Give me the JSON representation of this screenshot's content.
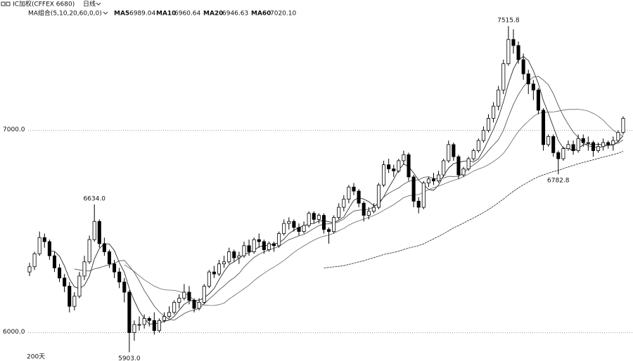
{
  "chart_data": {
    "type": "candlestick",
    "title": "IC加权(CFFEX 6680)",
    "period_label": "日线",
    "ma_group_label": "MA组合(5,10,20,60,0,0)",
    "moving_averages": [
      {
        "name": "MA5",
        "period": 5,
        "value": 6989.04,
        "color": "#111111"
      },
      {
        "name": "MA10",
        "period": 10,
        "value": 6960.64,
        "color": "#444444"
      },
      {
        "name": "MA20",
        "period": 20,
        "value": 6946.63,
        "color": "#666666"
      },
      {
        "name": "MA60",
        "period": 60,
        "value": 7020.1,
        "value_label": "7020.10",
        "color": "#222222"
      }
    ],
    "footer": "200天",
    "ylim": [
      5870,
      7600
    ],
    "yticks": [
      {
        "value": 7000,
        "label": "7000.0"
      },
      {
        "value": 6000,
        "label": "6000.0"
      }
    ],
    "grid": true,
    "up_color": "#ffffff",
    "down_color": "#000000",
    "annotations": [
      {
        "value": 7515.8,
        "kind": "high"
      },
      {
        "value": 6634,
        "label": "6634.0",
        "kind": "high"
      },
      {
        "value": 5903,
        "label": "5903.0",
        "kind": "low"
      },
      {
        "value": 6782.8,
        "kind": "low"
      }
    ],
    "candles": [
      [
        6300,
        6345,
        6280,
        6326
      ],
      [
        6326,
        6400,
        6310,
        6390
      ],
      [
        6390,
        6500,
        6380,
        6470
      ],
      [
        6470,
        6490,
        6420,
        6450
      ],
      [
        6450,
        6460,
        6360,
        6380
      ],
      [
        6380,
        6400,
        6300,
        6320
      ],
      [
        6320,
        6340,
        6250,
        6270
      ],
      [
        6270,
        6290,
        6200,
        6230
      ],
      [
        6230,
        6250,
        6100,
        6130
      ],
      [
        6130,
        6200,
        6110,
        6180
      ],
      [
        6180,
        6300,
        6170,
        6280
      ],
      [
        6280,
        6380,
        6260,
        6350
      ],
      [
        6350,
        6480,
        6340,
        6460
      ],
      [
        6460,
        6634,
        6450,
        6550
      ],
      [
        6550,
        6560,
        6420,
        6440
      ],
      [
        6440,
        6470,
        6380,
        6400
      ],
      [
        6400,
        6410,
        6320,
        6340
      ],
      [
        6340,
        6360,
        6270,
        6300
      ],
      [
        6300,
        6320,
        6220,
        6250
      ],
      [
        6250,
        6270,
        6150,
        6200
      ],
      [
        6200,
        6210,
        5903,
        6000
      ],
      [
        6000,
        6060,
        5960,
        6040
      ],
      [
        6040,
        6080,
        6010,
        6040
      ],
      [
        6040,
        6090,
        6020,
        6070
      ],
      [
        6070,
        6080,
        6030,
        6060
      ],
      [
        6060,
        6100,
        5990,
        6010
      ],
      [
        6010,
        6070,
        6000,
        6060
      ],
      [
        6060,
        6100,
        6050,
        6080
      ],
      [
        6080,
        6130,
        6070,
        6100
      ],
      [
        6100,
        6160,
        6090,
        6150
      ],
      [
        6150,
        6190,
        6120,
        6170
      ],
      [
        6170,
        6240,
        6160,
        6200
      ],
      [
        6200,
        6230,
        6140,
        6160
      ],
      [
        6160,
        6170,
        6100,
        6120
      ],
      [
        6120,
        6170,
        6110,
        6150
      ],
      [
        6150,
        6240,
        6140,
        6230
      ],
      [
        6230,
        6310,
        6220,
        6300
      ],
      [
        6300,
        6330,
        6270,
        6290
      ],
      [
        6290,
        6360,
        6280,
        6340
      ],
      [
        6340,
        6380,
        6320,
        6350
      ],
      [
        6350,
        6420,
        6340,
        6400
      ],
      [
        6400,
        6410,
        6350,
        6370
      ],
      [
        6370,
        6400,
        6340,
        6380
      ],
      [
        6380,
        6450,
        6370,
        6430
      ],
      [
        6430,
        6460,
        6380,
        6400
      ],
      [
        6400,
        6470,
        6390,
        6460
      ],
      [
        6460,
        6490,
        6420,
        6450
      ],
      [
        6450,
        6460,
        6390,
        6410
      ],
      [
        6410,
        6450,
        6400,
        6440
      ],
      [
        6440,
        6450,
        6400,
        6430
      ],
      [
        6430,
        6500,
        6420,
        6490
      ],
      [
        6490,
        6560,
        6480,
        6540
      ],
      [
        6540,
        6570,
        6510,
        6550
      ],
      [
        6550,
        6560,
        6500,
        6520
      ],
      [
        6520,
        6540,
        6480,
        6500
      ],
      [
        6500,
        6550,
        6490,
        6530
      ],
      [
        6530,
        6600,
        6520,
        6590
      ],
      [
        6590,
        6600,
        6540,
        6560
      ],
      [
        6560,
        6590,
        6540,
        6580
      ],
      [
        6580,
        6590,
        6490,
        6510
      ],
      [
        6510,
        6520,
        6440,
        6500
      ],
      [
        6500,
        6580,
        6490,
        6570
      ],
      [
        6570,
        6640,
        6560,
        6620
      ],
      [
        6620,
        6680,
        6600,
        6660
      ],
      [
        6660,
        6730,
        6640,
        6720
      ],
      [
        6720,
        6740,
        6680,
        6700
      ],
      [
        6700,
        6710,
        6620,
        6640
      ],
      [
        6640,
        6650,
        6550,
        6580
      ],
      [
        6580,
        6620,
        6560,
        6600
      ],
      [
        6600,
        6640,
        6590,
        6620
      ],
      [
        6620,
        6740,
        6610,
        6730
      ],
      [
        6730,
        6850,
        6720,
        6830
      ],
      [
        6830,
        6860,
        6790,
        6810
      ],
      [
        6810,
        6830,
        6770,
        6800
      ],
      [
        6800,
        6860,
        6790,
        6850
      ],
      [
        6850,
        6900,
        6830,
        6880
      ],
      [
        6880,
        6890,
        6750,
        6770
      ],
      [
        6770,
        6780,
        6620,
        6650
      ],
      [
        6650,
        6670,
        6590,
        6620
      ],
      [
        6620,
        6750,
        6610,
        6740
      ],
      [
        6740,
        6770,
        6720,
        6760
      ],
      [
        6760,
        6790,
        6730,
        6750
      ],
      [
        6750,
        6800,
        6740,
        6780
      ],
      [
        6780,
        6860,
        6770,
        6850
      ],
      [
        6850,
        6950,
        6840,
        6930
      ],
      [
        6930,
        6940,
        6850,
        6870
      ],
      [
        6870,
        6880,
        6760,
        6780
      ],
      [
        6780,
        6820,
        6770,
        6810
      ],
      [
        6810,
        6870,
        6800,
        6860
      ],
      [
        6860,
        6910,
        6850,
        6900
      ],
      [
        6900,
        6960,
        6890,
        6950
      ],
      [
        6950,
        7020,
        6940,
        7000
      ],
      [
        7000,
        7080,
        6990,
        7060
      ],
      [
        7060,
        7140,
        7040,
        7120
      ],
      [
        7120,
        7220,
        7100,
        7200
      ],
      [
        7200,
        7350,
        7180,
        7330
      ],
      [
        7330,
        7515.8,
        7320,
        7450
      ],
      [
        7450,
        7500,
        7380,
        7420
      ],
      [
        7420,
        7440,
        7330,
        7350
      ],
      [
        7350,
        7380,
        7250,
        7280
      ],
      [
        7280,
        7300,
        7180,
        7230
      ],
      [
        7230,
        7250,
        7150,
        7200
      ],
      [
        7200,
        7210,
        7080,
        7100
      ],
      [
        7100,
        7110,
        6900,
        6930
      ],
      [
        6930,
        6980,
        6920,
        6970
      ],
      [
        6970,
        6980,
        6870,
        6890
      ],
      [
        6890,
        6900,
        6782.8,
        6860
      ],
      [
        6860,
        6920,
        6850,
        6910
      ],
      [
        6910,
        6950,
        6900,
        6930
      ],
      [
        6930,
        6950,
        6880,
        6900
      ],
      [
        6900,
        6980,
        6890,
        6960
      ],
      [
        6960,
        6980,
        6920,
        6940
      ],
      [
        6940,
        6970,
        6900,
        6940
      ],
      [
        6940,
        6950,
        6870,
        6900
      ],
      [
        6900,
        6940,
        6890,
        6920
      ],
      [
        6920,
        6960,
        6900,
        6940
      ],
      [
        6940,
        6950,
        6910,
        6930
      ],
      [
        6930,
        6970,
        6900,
        6950
      ],
      [
        6950,
        7000,
        6940,
        6990
      ],
      [
        6990,
        7070,
        6980,
        7060
      ]
    ]
  }
}
